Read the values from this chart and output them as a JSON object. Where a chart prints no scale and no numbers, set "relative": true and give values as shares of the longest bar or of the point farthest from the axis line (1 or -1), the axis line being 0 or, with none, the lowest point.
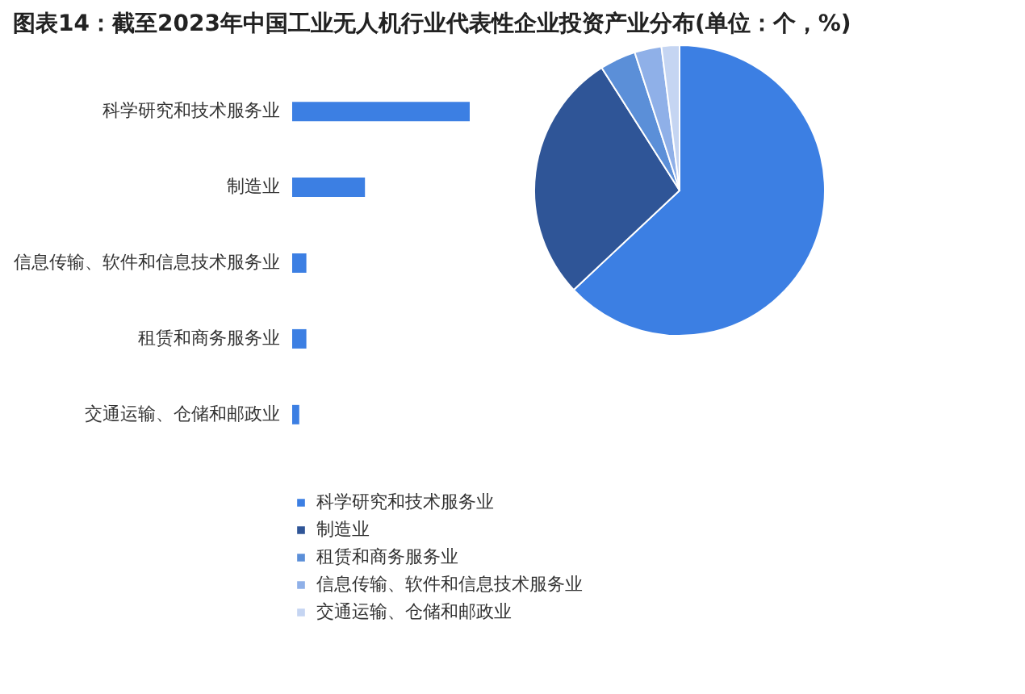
{
  "chart_data": [
    {
      "type": "bar",
      "title": "图表14：截至2023年中国工业无人机行业代表性企业投资产业分布(单位：个，%)",
      "orientation": "horizontal",
      "relative": true,
      "categories": [
        "科学研究和技术服务业",
        "制造业",
        "信息传输、软件和信息技术服务业",
        "租赁和商务服务业",
        "交通运输、仓储和邮政业"
      ],
      "values": [
        1,
        0.41,
        0.08,
        0.08,
        0.04
      ],
      "color": "#3c7fe3"
    },
    {
      "type": "pie",
      "categories": [
        "科学研究和技术服务业",
        "制造业",
        "租赁和商务服务业",
        "信息传输、软件和信息技术服务业",
        "交通运输、仓储和邮政业"
      ],
      "values": [
        63,
        28,
        4,
        3,
        2
      ],
      "colors": [
        "#3c7fe3",
        "#2f5597",
        "#5b8fd8",
        "#8fb0e8",
        "#c5d5f2"
      ],
      "legend": "bottom"
    }
  ]
}
